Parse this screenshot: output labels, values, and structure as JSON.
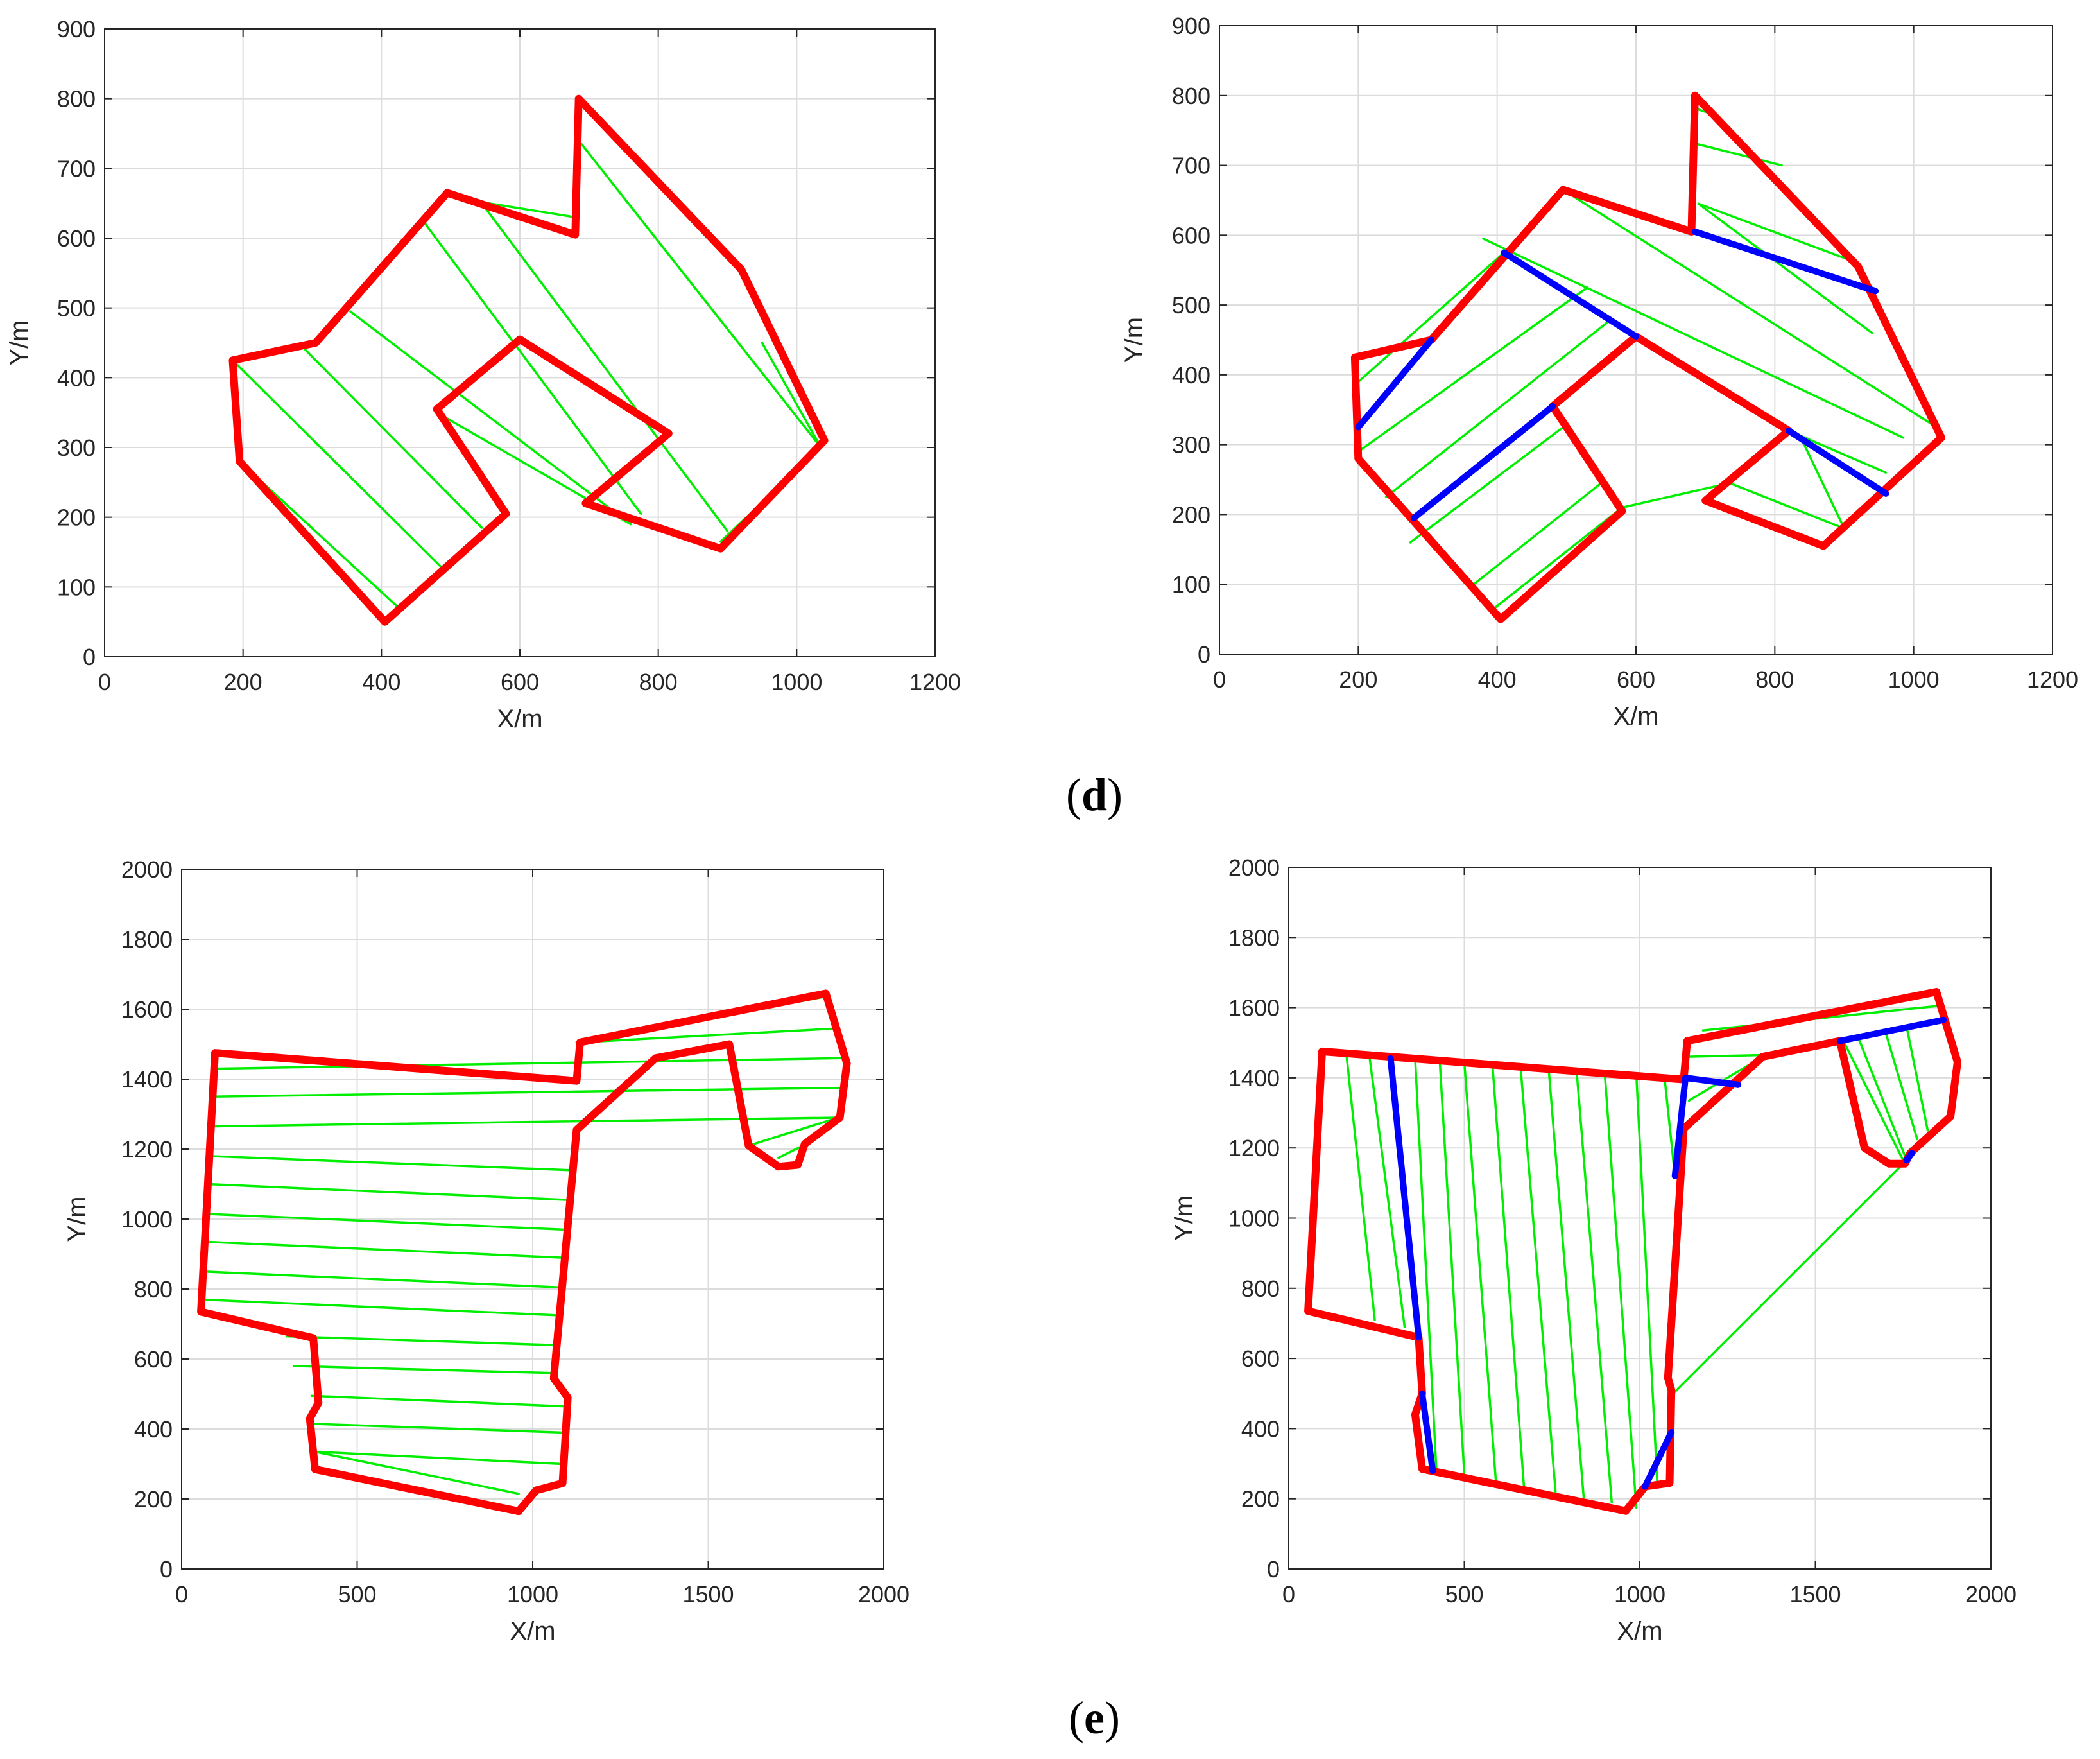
{
  "chart_data": [
    {
      "type": "line",
      "panel": "d-left",
      "xlabel": "X/m",
      "ylabel": "Y/m",
      "xlim": [
        0,
        1200
      ],
      "ylim": [
        0,
        900
      ],
      "xticks": [
        0,
        200,
        400,
        600,
        800,
        1000,
        1200
      ],
      "yticks": [
        0,
        100,
        200,
        300,
        400,
        500,
        600,
        700,
        800,
        900
      ],
      "grid": true,
      "boundary": [
        [
          405,
          50
        ],
        [
          195,
          280
        ],
        [
          185,
          425
        ],
        [
          305,
          450
        ],
        [
          495,
          665
        ],
        [
          680,
          605
        ],
        [
          685,
          800
        ],
        [
          920,
          555
        ],
        [
          1040,
          310
        ],
        [
          890,
          155
        ],
        [
          695,
          220
        ],
        [
          815,
          320
        ],
        [
          600,
          455
        ],
        [
          480,
          355
        ],
        [
          580,
          205
        ],
        [
          405,
          50
        ]
      ],
      "transit": [],
      "sweeps": [
        [
          [
            405,
            50
          ],
          [
            195,
            280
          ]
        ],
        [
          [
            195,
            280
          ],
          [
            185,
            425
          ]
        ],
        [
          [
            195,
            280
          ],
          [
            425,
            70
          ]
        ],
        [
          [
            185,
            425
          ],
          [
            490,
            125
          ]
        ],
        [
          [
            290,
            440
          ],
          [
            545,
            185
          ]
        ],
        [
          [
            355,
            495
          ],
          [
            760,
            190
          ]
        ],
        [
          [
            480,
            350
          ],
          [
            760,
            190
          ]
        ],
        [
          [
            460,
            625
          ],
          [
            775,
            205
          ]
        ],
        [
          [
            545,
            650
          ],
          [
            900,
            180
          ]
        ],
        [
          [
            555,
            650
          ],
          [
            680,
            630
          ]
        ],
        [
          [
            685,
            740
          ],
          [
            1035,
            300
          ]
        ],
        [
          [
            950,
            450
          ],
          [
            1035,
            300
          ]
        ],
        [
          [
            1035,
            300
          ],
          [
            890,
            165
          ]
        ]
      ]
    },
    {
      "type": "line",
      "panel": "d-right",
      "xlabel": "X/m",
      "ylabel": "Y/m",
      "xlim": [
        0,
        1200
      ],
      "ylim": [
        0,
        900
      ],
      "xticks": [
        0,
        200,
        400,
        600,
        800,
        1000,
        1200
      ],
      "yticks": [
        0,
        100,
        200,
        300,
        400,
        500,
        600,
        700,
        800,
        900
      ],
      "grid": true,
      "boundary": [
        [
          405,
          50
        ],
        [
          200,
          280
        ],
        [
          195,
          425
        ],
        [
          305,
          450
        ],
        [
          495,
          665
        ],
        [
          680,
          605
        ],
        [
          685,
          800
        ],
        [
          920,
          555
        ],
        [
          1040,
          310
        ],
        [
          870,
          155
        ],
        [
          700,
          220
        ],
        [
          820,
          320
        ],
        [
          600,
          455
        ],
        [
          480,
          355
        ],
        [
          580,
          205
        ],
        [
          405,
          50
        ]
      ],
      "transit": [
        [
          [
            200,
            325
          ],
          [
            305,
            450
          ]
        ],
        [
          [
            410,
            575
          ],
          [
            600,
            455
          ]
        ],
        [
          [
            280,
            195
          ],
          [
            480,
            355
          ]
        ],
        [
          [
            685,
            605
          ],
          [
            945,
            520
          ]
        ],
        [
          [
            820,
            320
          ],
          [
            960,
            230
          ]
        ]
      ],
      "sweeps": [
        [
          [
            200,
            390
          ],
          [
            410,
            575
          ]
        ],
        [
          [
            200,
            290
          ],
          [
            530,
            525
          ]
        ],
        [
          [
            240,
            225
          ],
          [
            565,
            480
          ]
        ],
        [
          [
            275,
            160
          ],
          [
            495,
            325
          ]
        ],
        [
          [
            360,
            95
          ],
          [
            550,
            245
          ]
        ],
        [
          [
            395,
            65
          ],
          [
            580,
            210
          ]
        ],
        [
          [
            380,
            595
          ],
          [
            985,
            310
          ]
        ],
        [
          [
            495,
            665
          ],
          [
            1025,
            330
          ]
        ],
        [
          [
            580,
            210
          ],
          [
            735,
            245
          ]
        ],
        [
          [
            735,
            245
          ],
          [
            900,
            180
          ]
        ],
        [
          [
            820,
            320
          ],
          [
            960,
            260
          ]
        ],
        [
          [
            840,
            305
          ],
          [
            900,
            180
          ]
        ],
        [
          [
            690,
            645
          ],
          [
            940,
            460
          ]
        ],
        [
          [
            690,
            730
          ],
          [
            810,
            700
          ]
        ],
        [
          [
            690,
            645
          ],
          [
            920,
            560
          ]
        ],
        [
          [
            690,
            780
          ],
          [
            720,
            770
          ]
        ]
      ]
    },
    {
      "type": "line",
      "panel": "e-left",
      "xlabel": "X/m",
      "ylabel": "Y/m",
      "xlim": [
        0,
        2000
      ],
      "ylim": [
        0,
        2000
      ],
      "xticks": [
        0,
        500,
        1000,
        1500,
        2000
      ],
      "yticks": [
        0,
        200,
        400,
        600,
        800,
        1000,
        1200,
        1400,
        1600,
        1800,
        2000
      ],
      "grid": true,
      "boundary": [
        [
          960,
          165
        ],
        [
          380,
          285
        ],
        [
          365,
          430
        ],
        [
          390,
          475
        ],
        [
          375,
          660
        ],
        [
          55,
          735
        ],
        [
          95,
          1475
        ],
        [
          1125,
          1395
        ],
        [
          1135,
          1505
        ],
        [
          1835,
          1645
        ],
        [
          1895,
          1445
        ],
        [
          1875,
          1290
        ],
        [
          1775,
          1215
        ],
        [
          1755,
          1155
        ],
        [
          1700,
          1150
        ],
        [
          1615,
          1210
        ],
        [
          1560,
          1500
        ],
        [
          1350,
          1460
        ],
        [
          1125,
          1255
        ],
        [
          1060,
          545
        ],
        [
          1100,
          490
        ],
        [
          1085,
          245
        ],
        [
          1010,
          225
        ],
        [
          960,
          165
        ]
      ],
      "transit": [],
      "sweeps": [
        [
          [
            95,
            1430
          ],
          [
            1880,
            1460
          ]
        ],
        [
          [
            85,
            1350
          ],
          [
            1875,
            1375
          ]
        ],
        [
          [
            80,
            1265
          ],
          [
            1870,
            1290
          ]
        ],
        [
          [
            1125,
            1505
          ],
          [
            1830,
            1635
          ]
        ],
        [
          [
            1135,
            1505
          ],
          [
            1870,
            1545
          ]
        ],
        [
          [
            80,
            1180
          ],
          [
            1105,
            1140
          ]
        ],
        [
          [
            75,
            1100
          ],
          [
            1095,
            1055
          ]
        ],
        [
          [
            70,
            1015
          ],
          [
            1090,
            970
          ]
        ],
        [
          [
            70,
            935
          ],
          [
            1080,
            890
          ]
        ],
        [
          [
            65,
            850
          ],
          [
            1075,
            805
          ]
        ],
        [
          [
            60,
            770
          ],
          [
            1070,
            725
          ]
        ],
        [
          [
            300,
            665
          ],
          [
            1065,
            640
          ]
        ],
        [
          [
            320,
            580
          ],
          [
            1060,
            560
          ]
        ],
        [
          [
            370,
            495
          ],
          [
            1090,
            465
          ]
        ],
        [
          [
            370,
            415
          ],
          [
            1090,
            390
          ]
        ],
        [
          [
            380,
            335
          ],
          [
            1085,
            300
          ]
        ],
        [
          [
            380,
            335
          ],
          [
            960,
            215
          ]
        ],
        [
          [
            1615,
            1210
          ],
          [
            1870,
            1290
          ]
        ],
        [
          [
            1700,
            1175
          ],
          [
            1780,
            1215
          ]
        ]
      ]
    },
    {
      "type": "line",
      "panel": "e-right",
      "xlabel": "X/m",
      "ylabel": "Y/m",
      "xlim": [
        0,
        2000
      ],
      "ylim": [
        0,
        2000
      ],
      "xticks": [
        0,
        500,
        1000,
        1500,
        2000
      ],
      "yticks": [
        0,
        200,
        400,
        600,
        800,
        1000,
        1200,
        1400,
        1600,
        1800,
        2000
      ],
      "grid": true,
      "boundary": [
        [
          960,
          165
        ],
        [
          380,
          285
        ],
        [
          360,
          440
        ],
        [
          380,
          500
        ],
        [
          370,
          660
        ],
        [
          55,
          735
        ],
        [
          95,
          1475
        ],
        [
          1125,
          1395
        ],
        [
          1135,
          1505
        ],
        [
          1845,
          1645
        ],
        [
          1905,
          1445
        ],
        [
          1885,
          1290
        ],
        [
          1770,
          1185
        ],
        [
          1755,
          1155
        ],
        [
          1710,
          1155
        ],
        [
          1640,
          1200
        ],
        [
          1570,
          1505
        ],
        [
          1350,
          1460
        ],
        [
          1125,
          1255
        ],
        [
          1080,
          545
        ],
        [
          1090,
          510
        ],
        [
          1085,
          245
        ],
        [
          1015,
          235
        ],
        [
          960,
          165
        ]
      ],
      "transit": [
        [
          [
            290,
            1455
          ],
          [
            370,
            660
          ]
        ],
        [
          [
            380,
            500
          ],
          [
            410,
            280
          ]
        ],
        [
          [
            1015,
            235
          ],
          [
            1090,
            390
          ]
        ],
        [
          [
            1100,
            1120
          ],
          [
            1130,
            1400
          ]
        ],
        [
          [
            1130,
            1400
          ],
          [
            1280,
            1380
          ]
        ],
        [
          [
            1570,
            1505
          ],
          [
            1865,
            1565
          ]
        ],
        [
          [
            1760,
            1165
          ],
          [
            1775,
            1185
          ]
        ]
      ],
      "sweeps": [
        [
          [
            90,
            1385
          ],
          [
            55,
            760
          ]
        ],
        [
          [
            165,
            1460
          ],
          [
            245,
            710
          ]
        ],
        [
          [
            230,
            1460
          ],
          [
            330,
            690
          ]
        ],
        [
          [
            360,
            1455
          ],
          [
            420,
            290
          ]
        ],
        [
          [
            430,
            1450
          ],
          [
            500,
            270
          ]
        ],
        [
          [
            500,
            1445
          ],
          [
            590,
            250
          ]
        ],
        [
          [
            580,
            1440
          ],
          [
            670,
            235
          ]
        ],
        [
          [
            660,
            1435
          ],
          [
            760,
            220
          ]
        ],
        [
          [
            740,
            1430
          ],
          [
            840,
            205
          ]
        ],
        [
          [
            820,
            1420
          ],
          [
            920,
            190
          ]
        ],
        [
          [
            900,
            1415
          ],
          [
            990,
            175
          ]
        ],
        [
          [
            990,
            1410
          ],
          [
            1050,
            240
          ]
        ],
        [
          [
            1070,
            1405
          ],
          [
            1100,
            1120
          ]
        ],
        [
          [
            1135,
            1460
          ],
          [
            1360,
            1465
          ]
        ],
        [
          [
            1140,
            1335
          ],
          [
            1350,
            1460
          ]
        ],
        [
          [
            1580,
            1505
          ],
          [
            1750,
            1165
          ]
        ],
        [
          [
            1620,
            1520
          ],
          [
            1760,
            1165
          ]
        ],
        [
          [
            1700,
            1530
          ],
          [
            1790,
            1225
          ]
        ],
        [
          [
            1760,
            1545
          ],
          [
            1820,
            1250
          ]
        ],
        [
          [
            1760,
            1165
          ],
          [
            1095,
            500
          ]
        ],
        [
          [
            1180,
            1535
          ],
          [
            1850,
            1605
          ]
        ]
      ]
    }
  ],
  "captions": {
    "d": "d",
    "e": "e"
  }
}
